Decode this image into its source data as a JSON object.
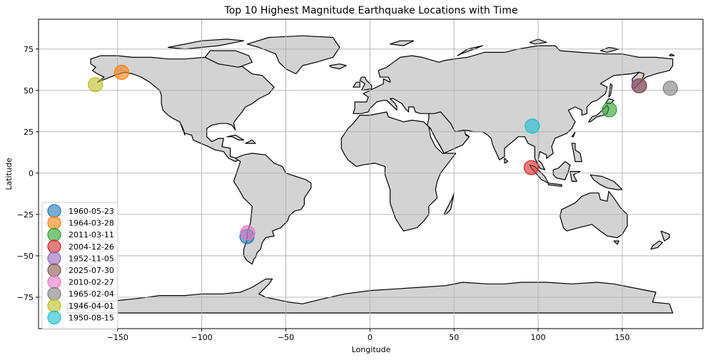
{
  "chart_data": {
    "type": "scatter",
    "title": "Top 10 Highest Magnitude Earthquake Locations with Time",
    "xlabel": "Longitude",
    "ylabel": "Latitude",
    "xlim": [
      -197,
      198
    ],
    "ylim": [
      -94,
      93
    ],
    "xticks": [
      -150,
      -100,
      -50,
      0,
      50,
      100,
      150
    ],
    "yticks": [
      -75,
      -50,
      -25,
      0,
      25,
      50,
      75
    ],
    "xtick_labels": [
      "−150",
      "−100",
      "−50",
      "0",
      "50",
      "100",
      "150"
    ],
    "ytick_labels": [
      "−75",
      "−50",
      "−25",
      "0",
      "25",
      "50",
      "75"
    ],
    "grid": true,
    "legend_position": "lower-left",
    "series": [
      {
        "name": "1960-05-23",
        "x": [
          -73.1
        ],
        "y": [
          -38.3
        ],
        "color": "#1f77b4"
      },
      {
        "name": "1964-03-28",
        "x": [
          -147.6
        ],
        "y": [
          60.9
        ],
        "color": "#ff7f0e"
      },
      {
        "name": "2011-03-11",
        "x": [
          142.4
        ],
        "y": [
          38.3
        ],
        "color": "#2ca02c"
      },
      {
        "name": "2004-12-26",
        "x": [
          95.9
        ],
        "y": [
          3.3
        ],
        "color": "#d62728"
      },
      {
        "name": "1952-11-05",
        "x": [
          159.8
        ],
        "y": [
          52.8
        ],
        "color": "#9467bd"
      },
      {
        "name": "2025-07-30",
        "x": [
          160.3
        ],
        "y": [
          52.8
        ],
        "color": "#8c564b"
      },
      {
        "name": "2010-02-27",
        "x": [
          -72.7
        ],
        "y": [
          -36.1
        ],
        "color": "#e377c2"
      },
      {
        "name": "1965-02-04",
        "x": [
          178.6
        ],
        "y": [
          51.3
        ],
        "color": "#7f7f7f"
      },
      {
        "name": "1946-04-01",
        "x": [
          -163.2
        ],
        "y": [
          53.5
        ],
        "color": "#bcbd22"
      },
      {
        "name": "1950-08-15",
        "x": [
          96.5
        ],
        "y": [
          28.4
        ],
        "color": "#17becf"
      }
    ]
  }
}
